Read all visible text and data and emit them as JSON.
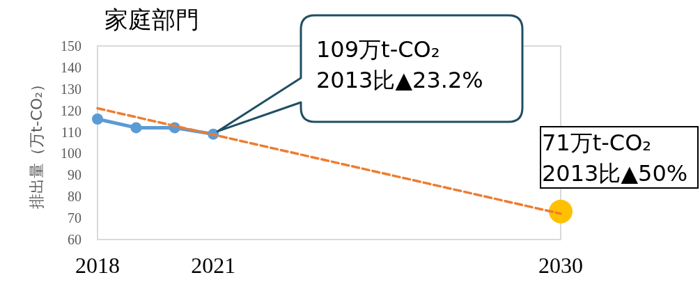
{
  "chart_data": {
    "type": "line",
    "title": "家庭部門",
    "ylabel": "排出量（万t-CO₂）",
    "xlim": [
      2018,
      2030
    ],
    "xticks": [
      2018,
      2021,
      2030
    ],
    "ylim": [
      60,
      150
    ],
    "yticks": [
      60,
      70,
      80,
      90,
      100,
      110,
      120,
      130,
      140,
      150
    ],
    "series": [
      {
        "color": "#5b9bd5",
        "x": [
          2018,
          2019,
          2020,
          2021
        ],
        "values": [
          116,
          112,
          112,
          109
        ],
        "marker": "circle",
        "line_style": "solid"
      },
      {
        "color": "#ed7d31",
        "x": [
          2018,
          2030
        ],
        "values": [
          121,
          72
        ],
        "marker": "none",
        "line_style": "dashed"
      },
      {
        "type": "scatter",
        "color": "#ffc000",
        "x": [
          2030
        ],
        "values": [
          73
        ],
        "marker": "circle"
      }
    ],
    "annotations": [
      "109万t-CO₂\n2013比▲23.2%",
      "71万t-CO₂\n2013比▲50%"
    ]
  }
}
